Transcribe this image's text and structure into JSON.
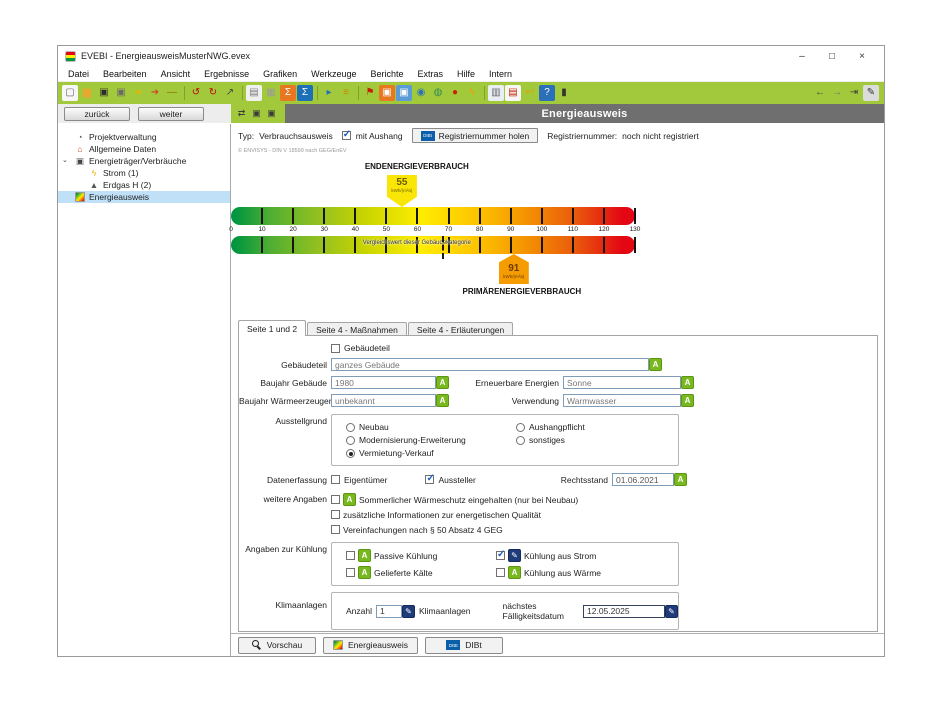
{
  "window": {
    "title": "EVEBI - EnergieausweisMusterNWG.evex",
    "controls": {
      "minimize": "–",
      "maximize": "□",
      "close": "×"
    }
  },
  "menubar": {
    "items": [
      "Datei",
      "Bearbeiten",
      "Ansicht",
      "Ergebnisse",
      "Grafiken",
      "Werkzeuge",
      "Berichte",
      "Extras",
      "Hilfe",
      "Intern"
    ]
  },
  "toolbar": {
    "left_icons": [
      {
        "name": "new-document-icon",
        "glyph": "▢",
        "fg": "#666666",
        "bg": "#f7f7f7"
      },
      {
        "name": "open-folder-icon",
        "glyph": "▆",
        "fg": "#e8a830"
      },
      {
        "name": "save-icon",
        "glyph": "▣",
        "fg": "#2b2b2b"
      },
      {
        "name": "copy-icon",
        "glyph": "▣",
        "fg": "#6a6a6a"
      },
      {
        "name": "import-icon",
        "glyph": "➜",
        "fg": "#e8b400"
      },
      {
        "name": "export-icon",
        "glyph": "➜",
        "fg": "#d04a28"
      },
      {
        "name": "key-icon",
        "glyph": "—",
        "fg": "#8a6a00"
      },
      {
        "sep": true
      },
      {
        "name": "undo-icon",
        "glyph": "↺",
        "fg": "#c00000"
      },
      {
        "name": "redo-icon",
        "glyph": "↻",
        "fg": "#c00000"
      },
      {
        "name": "pointer-icon",
        "glyph": "↗",
        "fg": "#444444"
      },
      {
        "sep": true
      },
      {
        "name": "report-icon",
        "glyph": "▤",
        "fg": "#7a7a7a",
        "bg": "#f0f0f0"
      },
      {
        "name": "grid-icon",
        "glyph": "▦",
        "fg": "#9a9a9a"
      },
      {
        "name": "sum-orange-icon",
        "glyph": "Σ",
        "fg": "#ffffff",
        "bg": "#e87722"
      },
      {
        "name": "sum-blue-icon",
        "glyph": "Σ",
        "fg": "#ffffff",
        "bg": "#1d6fb8"
      },
      {
        "sep": true
      },
      {
        "name": "calculation-icon",
        "glyph": "▸",
        "fg": "#1d6fb8"
      },
      {
        "name": "list-icon",
        "glyph": "≡",
        "fg": "#c78a00"
      },
      {
        "sep": true
      },
      {
        "name": "flag-icon",
        "glyph": "⚑",
        "fg": "#c42200"
      },
      {
        "name": "module-orange-icon",
        "glyph": "▣",
        "fg": "#ffffff",
        "bg": "#e87722"
      },
      {
        "name": "module-blue-icon",
        "glyph": "▣",
        "fg": "#ffffff",
        "bg": "#5b9bd5"
      },
      {
        "name": "search-icon",
        "glyph": "◉",
        "fg": "#2b6fb8"
      },
      {
        "name": "globe-icon",
        "glyph": "◍",
        "fg": "#2e8b57"
      },
      {
        "name": "record-icon",
        "glyph": "●",
        "fg": "#cc2200"
      },
      {
        "name": "lightning-icon",
        "glyph": "ϟ",
        "fg": "#e8a000"
      },
      {
        "sep": true
      },
      {
        "name": "window-icon",
        "glyph": "▥",
        "fg": "#666666",
        "bg": "#e8eef4"
      },
      {
        "name": "certificate-doc-icon",
        "glyph": "▤",
        "fg": "#c42200",
        "bg": "#f7f7f7"
      },
      {
        "name": "back-curve-icon",
        "glyph": "↩",
        "fg": "#e8a000"
      },
      {
        "name": "help-icon",
        "glyph": "?",
        "fg": "#ffffff",
        "bg": "#2b6fb8"
      },
      {
        "name": "dark-doc-icon",
        "glyph": "▮",
        "fg": "#333333"
      }
    ],
    "right_icons": [
      {
        "name": "history-back-icon",
        "glyph": "←",
        "fg": "#3a3a3a"
      },
      {
        "name": "history-forward-icon",
        "glyph": "→",
        "fg": "#707070"
      },
      {
        "name": "history-end-icon",
        "glyph": "⇥",
        "fg": "#3a3a3a"
      },
      {
        "name": "edit-mode-icon",
        "glyph": "✎",
        "fg": "#333333",
        "bg": "#dcdcdc"
      }
    ]
  },
  "nav": {
    "back_label": "zurück",
    "next_label": "weiter"
  },
  "mini_toolbar": [
    {
      "name": "transfer-icon",
      "glyph": "⇄"
    },
    {
      "name": "save-variant-icon",
      "glyph": "▣"
    },
    {
      "name": "save-variant-2-icon",
      "glyph": "▣"
    }
  ],
  "section_header": {
    "title": "Energieausweis"
  },
  "sidebar": {
    "items": [
      {
        "label": "Projektverwaltung",
        "icon": "clock-icon",
        "glyph": "◔",
        "color": "#555555",
        "level": 1,
        "selected": false,
        "expanded": false
      },
      {
        "label": "Allgemeine Daten",
        "icon": "house-icon",
        "glyph": "⌂",
        "color": "#c43a2a",
        "level": 1,
        "selected": false,
        "expanded": false
      },
      {
        "label": "Energieträger/Verbräuche",
        "icon": "meter-icon",
        "glyph": "▣",
        "color": "#444444",
        "level": 1,
        "selected": false,
        "expanded": true
      },
      {
        "label": "Strom (1)",
        "icon": "lightning-icon",
        "glyph": "ϟ",
        "color": "#e8b400",
        "level": 2,
        "selected": false,
        "expanded": false
      },
      {
        "label": "Erdgas H (2)",
        "icon": "flame-icon",
        "glyph": "▲",
        "color": "#555555",
        "level": 2,
        "selected": false,
        "expanded": false
      },
      {
        "label": "Energieausweis",
        "icon": "certificate-icon",
        "glyph": "",
        "color": "",
        "level": 1,
        "selected": true,
        "expanded": false
      }
    ]
  },
  "content": {
    "type_row": {
      "type_label": "Typ:",
      "type_value": "Verbrauchsausweis",
      "aushang_label": "mit Aushang",
      "aushang_checked": true,
      "dibt_chip_text": "DIBt",
      "register_button_label": "Registriernummer holen",
      "register_status_label": "Registriernummer:",
      "register_status_value": "noch nicht registriert"
    },
    "copyright": "© ENVISYS - DIN V 18599 nach GEG/EnEV",
    "scale": {
      "top_label": "ENDENERGIEVERBRAUCH",
      "bottom_label": "PRIMÄRENERGIEVERBRAUCH",
      "unit": "kWh/(m²a)",
      "end_value": 55,
      "primary_value": 91,
      "min": 0,
      "max": 130,
      "tick_step": 10,
      "ticks": [
        "0",
        "10",
        "20",
        "30",
        "40",
        "50",
        "60",
        "70",
        "80",
        "90",
        "100",
        "110",
        "120",
        "130"
      ],
      "comparison_label": "Vergleichswert dieser Gebäudekategorie",
      "comparison_value": 68
    },
    "tabs": [
      {
        "label": "Seite 1 und 2",
        "active": true
      },
      {
        "label": "Seite 4 - Maßnahmen",
        "active": false
      },
      {
        "label": "Seite 4 - Erläuterungen",
        "active": false
      }
    ],
    "form": {
      "gebaeudeteil_checkbox": {
        "label": "Gebäudeteil",
        "checked": false
      },
      "fields": {
        "gebaeudeteil": {
          "label": "Gebäudeteil",
          "value": "ganzes Gebäude"
        },
        "baujahr_gebaeude": {
          "label": "Baujahr Gebäude",
          "value": "1980"
        },
        "erneuerbare_energien": {
          "label": "Erneuerbare Energien",
          "value": "Sonne"
        },
        "baujahr_waermeerzeuger": {
          "label": "Baujahr Wärmeerzeuger",
          "value": "unbekannt"
        },
        "verwendung": {
          "label": "Verwendung",
          "value": "Warmwasser"
        },
        "rechtsstand": {
          "label": "Rechtsstand",
          "value": "01.06.2021"
        }
      },
      "ausstellgrund": {
        "label": "Ausstellgrund",
        "options_left": [
          {
            "label": "Neubau",
            "selected": false
          },
          {
            "label": "Modernisierung-Erweiterung",
            "selected": false
          },
          {
            "label": "Vermietung-Verkauf",
            "selected": true
          }
        ],
        "options_right": [
          {
            "label": "Aushangpflicht",
            "selected": false
          },
          {
            "label": "sonstiges",
            "selected": false
          }
        ]
      },
      "datenerfassung": {
        "label": "Datenerfassung",
        "options": [
          {
            "label": "Eigentümer",
            "checked": false
          },
          {
            "label": "Aussteller",
            "checked": true
          }
        ]
      },
      "weitere_angaben": {
        "label": "weitere Angaben",
        "rows": [
          {
            "label": "Sommerlicher Wärmeschutz eingehalten (nur bei Neubau)",
            "checked": false,
            "has_a_button": true
          },
          {
            "label": "zusätzliche Informationen zur energetischen Qualität",
            "checked": false,
            "has_a_button": false
          },
          {
            "label": "Vereinfachungen nach § 50 Absatz 4 GEG",
            "checked": false,
            "has_a_button": false
          }
        ]
      },
      "kuehlung": {
        "label": "Angaben zur Kühlung",
        "items": [
          {
            "label": "Passive Kühlung",
            "checked": false,
            "button": "a"
          },
          {
            "label": "Kühlung aus Strom",
            "checked": true,
            "button": "edit"
          },
          {
            "label": "Gelieferte Kälte",
            "checked": false,
            "button": "a"
          },
          {
            "label": "Kühlung aus Wärme",
            "checked": false,
            "button": "a"
          }
        ]
      },
      "klimaanlagen": {
        "label": "Klimaanlagen",
        "anzahl_label": "Anzahl",
        "anzahl_value": "1",
        "anzahl_suffix": "Klimaanlagen",
        "faelligkeit_label": "nächstes Fälligkeitsdatum",
        "faelligkeit_value": "12.05.2025"
      }
    },
    "footer_buttons": [
      {
        "label": "Vorschau",
        "icon": "preview-icon"
      },
      {
        "label": "Energieausweis",
        "icon": "certificate-icon"
      },
      {
        "label": "DIBt",
        "icon": "dibt-icon"
      }
    ]
  },
  "colors": {
    "toolbar_green": "#a2c93c",
    "header_gray": "#6f6f6f",
    "accent_green": "#7ab81f",
    "accent_blue": "#1f3b7a",
    "scale_green": "#009640",
    "scale_yellow": "#ffed00",
    "scale_orange": "#f59c00",
    "scale_red": "#e30613"
  }
}
